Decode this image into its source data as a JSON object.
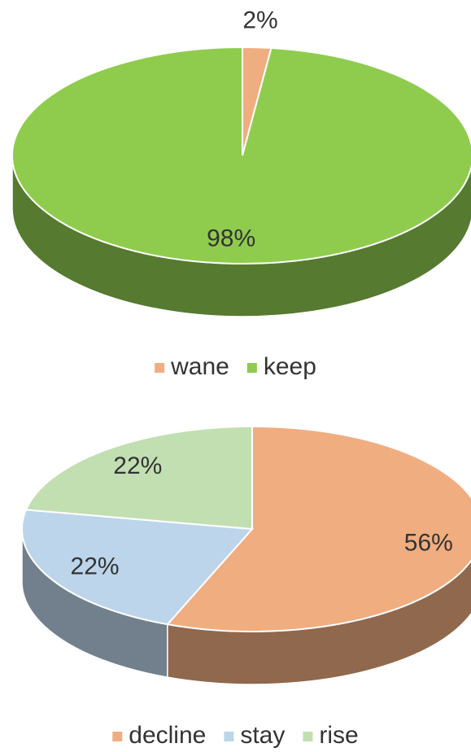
{
  "chart_data": [
    {
      "type": "pie",
      "categories": [
        "wane",
        "keep"
      ],
      "values": [
        2,
        98
      ],
      "value_labels": [
        "2%",
        "98%"
      ],
      "colors": [
        "#f0ad80",
        "#8fcc4e"
      ]
    },
    {
      "type": "pie",
      "categories": [
        "decline",
        "stay",
        "rise"
      ],
      "values": [
        56,
        22,
        22
      ],
      "value_labels": [
        "56%",
        "22%",
        "22%"
      ],
      "colors": [
        "#f0ad80",
        "#bcd5ea",
        "#c2dfb2"
      ]
    }
  ]
}
